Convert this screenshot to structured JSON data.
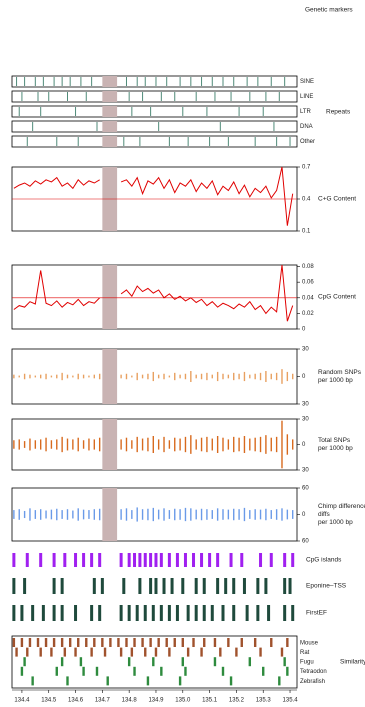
{
  "title": "Genetic markers",
  "chart_data": [
    {
      "type": "repeats",
      "title": "Repeats",
      "xlim": [
        134.363,
        135.426
      ],
      "highlight": [
        134.7,
        134.755
      ],
      "color": "#4f8a78",
      "rows": [
        {
          "name": "SINE",
          "x": [
            134.38,
            134.41,
            134.45,
            134.48,
            134.52,
            134.55,
            134.58,
            134.62,
            134.66,
            134.79,
            134.83,
            134.86,
            134.9,
            134.94,
            134.99,
            135.03,
            135.07,
            135.11,
            135.15,
            135.19,
            135.24,
            135.28,
            135.33,
            135.38
          ]
        },
        {
          "name": "LINE",
          "x": [
            134.4,
            134.46,
            134.5,
            134.57,
            134.64,
            134.8,
            134.85,
            134.92,
            134.97,
            135.05,
            135.12,
            135.18,
            135.25,
            135.31,
            135.36
          ]
        },
        {
          "name": "LTR",
          "x": [
            134.39,
            134.47,
            134.6,
            134.81,
            134.88,
            135.0,
            135.09,
            135.21,
            135.3
          ]
        },
        {
          "name": "DNA",
          "x": [
            134.44,
            134.68,
            134.91,
            135.14,
            135.34
          ]
        },
        {
          "name": "Other",
          "x": [
            134.42,
            134.53,
            134.61,
            134.78,
            134.84,
            134.95,
            135.02,
            135.1,
            135.17,
            135.27,
            135.35,
            135.4
          ]
        }
      ]
    },
    {
      "type": "line",
      "title": [
        "C+G Content"
      ],
      "xlim": [
        134.363,
        135.426
      ],
      "ylim": [
        0.1,
        0.7
      ],
      "yticks": [
        0.7,
        0.4,
        0.1
      ],
      "refline": 0.4,
      "highlight": [
        134.7,
        134.755
      ],
      "color": "#e00000",
      "x": [
        134.37,
        134.39,
        134.41,
        134.43,
        134.45,
        134.47,
        134.49,
        134.51,
        134.53,
        134.55,
        134.57,
        134.59,
        134.61,
        134.63,
        134.65,
        134.67,
        134.69,
        134.71,
        134.73,
        134.75,
        134.77,
        134.79,
        134.81,
        134.83,
        134.85,
        134.87,
        134.89,
        134.91,
        134.93,
        134.95,
        134.97,
        134.99,
        135.01,
        135.03,
        135.05,
        135.07,
        135.09,
        135.11,
        135.13,
        135.15,
        135.17,
        135.19,
        135.21,
        135.23,
        135.25,
        135.27,
        135.29,
        135.31,
        135.33,
        135.35,
        135.37,
        135.39,
        135.41
      ],
      "values": [
        0.5,
        0.53,
        0.55,
        0.52,
        0.57,
        0.54,
        0.58,
        0.56,
        0.6,
        0.52,
        0.55,
        0.5,
        0.58,
        0.53,
        0.57,
        0.55,
        0.58,
        null,
        null,
        null,
        0.56,
        0.58,
        0.52,
        0.6,
        0.45,
        0.57,
        0.54,
        0.6,
        0.5,
        0.58,
        0.46,
        0.55,
        0.52,
        0.58,
        0.47,
        0.55,
        0.5,
        0.57,
        0.44,
        0.52,
        0.48,
        0.56,
        0.45,
        0.53,
        0.42,
        0.5,
        0.46,
        0.52,
        0.41,
        0.48,
        0.7,
        0.15,
        0.45
      ]
    },
    {
      "type": "line",
      "title": [
        "CpG Content"
      ],
      "xlim": [
        134.363,
        135.426
      ],
      "ylim": [
        0,
        0.082
      ],
      "yticks": [
        0.08,
        0.06,
        0.04,
        0.02,
        0
      ],
      "refline": 0.04,
      "highlight": [
        134.7,
        134.755
      ],
      "color": "#e00000",
      "x": [
        134.37,
        134.39,
        134.41,
        134.43,
        134.45,
        134.47,
        134.49,
        134.51,
        134.53,
        134.55,
        134.57,
        134.59,
        134.61,
        134.63,
        134.65,
        134.67,
        134.69,
        134.71,
        134.73,
        134.75,
        134.77,
        134.79,
        134.81,
        134.83,
        134.85,
        134.87,
        134.89,
        134.91,
        134.93,
        134.95,
        134.97,
        134.99,
        135.01,
        135.03,
        135.05,
        135.07,
        135.09,
        135.11,
        135.13,
        135.15,
        135.17,
        135.19,
        135.21,
        135.23,
        135.25,
        135.27,
        135.29,
        135.31,
        135.33,
        135.35,
        135.37,
        135.39,
        135.41
      ],
      "values": [
        0.025,
        0.03,
        0.028,
        0.035,
        0.032,
        0.075,
        0.033,
        0.03,
        0.036,
        0.028,
        0.034,
        0.031,
        0.038,
        0.03,
        0.035,
        0.033,
        0.04,
        null,
        null,
        null,
        0.045,
        0.05,
        0.042,
        0.055,
        0.048,
        0.052,
        0.046,
        0.05,
        0.04,
        0.045,
        0.038,
        0.042,
        0.036,
        0.04,
        0.034,
        0.038,
        0.03,
        0.035,
        0.028,
        0.033,
        0.03,
        0.026,
        0.032,
        0.028,
        0.035,
        0.025,
        0.03,
        0.02,
        0.028,
        0.022,
        0.082,
        0.01,
        0.03
      ]
    },
    {
      "type": "snp",
      "title": [
        "Random SNPs",
        "per 1000 bp"
      ],
      "xlim": [
        134.363,
        135.426
      ],
      "ylim": [
        -30,
        30
      ],
      "yticks": [
        30,
        0,
        {
          "value": -30,
          "label": "30"
        }
      ],
      "highlight": [
        134.7,
        134.755
      ],
      "color": "#e8a060",
      "x": [
        134.37,
        134.39,
        134.41,
        134.43,
        134.45,
        134.47,
        134.49,
        134.51,
        134.53,
        134.55,
        134.57,
        134.59,
        134.61,
        134.63,
        134.65,
        134.67,
        134.69,
        134.71,
        134.73,
        134.75,
        134.77,
        134.79,
        134.81,
        134.83,
        134.85,
        134.87,
        134.89,
        134.91,
        134.93,
        134.95,
        134.97,
        134.99,
        135.01,
        135.03,
        135.05,
        135.07,
        135.09,
        135.11,
        135.13,
        135.15,
        135.17,
        135.19,
        135.21,
        135.23,
        135.25,
        135.27,
        135.29,
        135.31,
        135.33,
        135.35,
        135.37,
        135.39,
        135.41
      ],
      "values": [
        2,
        1,
        3,
        2,
        1,
        2,
        3,
        1,
        2,
        4,
        2,
        1,
        3,
        2,
        1,
        2,
        3,
        null,
        null,
        null,
        2,
        3,
        1,
        4,
        2,
        3,
        5,
        2,
        3,
        1,
        4,
        2,
        3,
        6,
        2,
        3,
        4,
        2,
        5,
        3,
        2,
        4,
        3,
        5,
        2,
        3,
        4,
        6,
        3,
        4,
        8,
        5,
        3
      ]
    },
    {
      "type": "snp",
      "title": [
        "Total SNPs",
        "per 1000 bp"
      ],
      "xlim": [
        134.363,
        135.426
      ],
      "ylim": [
        -30,
        30
      ],
      "yticks": [
        30,
        0,
        {
          "value": -30,
          "label": "30"
        }
      ],
      "highlight": [
        134.7,
        134.755
      ],
      "color": "#d86a1e",
      "x": [
        134.37,
        134.39,
        134.41,
        134.43,
        134.45,
        134.47,
        134.49,
        134.51,
        134.53,
        134.55,
        134.57,
        134.59,
        134.61,
        134.63,
        134.65,
        134.67,
        134.69,
        134.71,
        134.73,
        134.75,
        134.77,
        134.79,
        134.81,
        134.83,
        134.85,
        134.87,
        134.89,
        134.91,
        134.93,
        134.95,
        134.97,
        134.99,
        135.01,
        135.03,
        135.05,
        135.07,
        135.09,
        135.11,
        135.13,
        135.15,
        135.17,
        135.19,
        135.21,
        135.23,
        135.25,
        135.27,
        135.29,
        135.31,
        135.33,
        135.35,
        135.37,
        135.39,
        135.41
      ],
      "values": [
        5,
        6,
        4,
        7,
        5,
        6,
        8,
        5,
        6,
        9,
        7,
        6,
        8,
        5,
        7,
        6,
        8,
        null,
        null,
        null,
        6,
        8,
        5,
        9,
        7,
        8,
        10,
        6,
        9,
        5,
        8,
        7,
        9,
        11,
        6,
        8,
        9,
        7,
        10,
        8,
        6,
        9,
        8,
        10,
        7,
        8,
        9,
        11,
        8,
        9,
        28,
        12,
        6
      ]
    },
    {
      "type": "snp",
      "title": [
        "Chimp differences",
        "diffs",
        "per 1000 bp"
      ],
      "xlim": [
        134.363,
        135.426
      ],
      "ylim": [
        -60,
        60
      ],
      "yticks": [
        60,
        0,
        {
          "value": -60,
          "label": "60"
        }
      ],
      "highlight": [
        134.7,
        134.755
      ],
      "color": "#6a9ae8",
      "x": [
        134.37,
        134.39,
        134.41,
        134.43,
        134.45,
        134.47,
        134.49,
        134.51,
        134.53,
        134.55,
        134.57,
        134.59,
        134.61,
        134.63,
        134.65,
        134.67,
        134.69,
        134.71,
        134.73,
        134.75,
        134.77,
        134.79,
        134.81,
        134.83,
        134.85,
        134.87,
        134.89,
        134.91,
        134.93,
        134.95,
        134.97,
        134.99,
        135.01,
        135.03,
        135.05,
        135.07,
        135.09,
        135.11,
        135.13,
        135.15,
        135.17,
        135.19,
        135.21,
        135.23,
        135.25,
        135.27,
        135.29,
        135.31,
        135.33,
        135.35,
        135.37,
        135.39,
        135.41
      ],
      "values": [
        10,
        12,
        8,
        14,
        10,
        12,
        9,
        11,
        13,
        10,
        12,
        9,
        14,
        11,
        10,
        12,
        13,
        null,
        null,
        null,
        12,
        14,
        10,
        16,
        12,
        13,
        15,
        11,
        14,
        10,
        13,
        12,
        15,
        14,
        11,
        13,
        12,
        10,
        14,
        12,
        11,
        13,
        12,
        15,
        10,
        12,
        11,
        13,
        10,
        12,
        14,
        11,
        10
      ]
    },
    {
      "type": "features",
      "title": "CpG islands",
      "xlim": [
        134.363,
        135.426
      ],
      "color": "#a020f0",
      "x": [
        134.37,
        134.42,
        134.47,
        134.52,
        134.56,
        134.6,
        134.63,
        134.66,
        134.69,
        134.77,
        134.8,
        134.82,
        134.84,
        134.86,
        134.88,
        134.9,
        134.92,
        134.95,
        134.98,
        135.01,
        135.04,
        135.07,
        135.1,
        135.13,
        135.18,
        135.22,
        135.29,
        135.33,
        135.38,
        135.41
      ]
    },
    {
      "type": "features",
      "title": "Eponine–TSS",
      "xlim": [
        134.363,
        135.426
      ],
      "color": "#1f4a3c",
      "x": [
        134.37,
        134.41,
        134.52,
        134.55,
        134.67,
        134.7,
        134.78,
        134.84,
        134.88,
        134.9,
        134.93,
        134.96,
        135.0,
        135.05,
        135.08,
        135.13,
        135.16,
        135.19,
        135.23,
        135.28,
        135.31,
        135.38,
        135.4
      ]
    },
    {
      "type": "features",
      "title": "FirstEF",
      "xlim": [
        134.363,
        135.426
      ],
      "color": "#1f4a3c",
      "x": [
        134.37,
        134.4,
        134.44,
        134.48,
        134.52,
        134.55,
        134.6,
        134.66,
        134.69,
        134.77,
        134.8,
        134.83,
        134.86,
        134.89,
        134.92,
        134.95,
        134.98,
        135.02,
        135.05,
        135.08,
        135.11,
        135.15,
        135.19,
        135.24,
        135.28,
        135.32,
        135.38,
        135.41
      ]
    },
    {
      "type": "similarity",
      "title": "Similarity",
      "xlim": [
        134.363,
        135.426
      ],
      "xticks": [
        134.4,
        134.5,
        134.6,
        134.7,
        134.8,
        134.9,
        {
          "value": 135,
          "label": "135.0"
        },
        135.1,
        135.2,
        135.3,
        135.4
      ],
      "rows": [
        {
          "name": "Mouse",
          "color": "#a0522d",
          "x": [
            134.37,
            134.4,
            134.43,
            134.46,
            134.49,
            134.52,
            134.55,
            134.58,
            134.61,
            134.64,
            134.67,
            134.7,
            134.73,
            134.76,
            134.79,
            134.82,
            134.85,
            134.88,
            134.91,
            134.94,
            134.97,
            135.0,
            135.04,
            135.08,
            135.12,
            135.17,
            135.22,
            135.27,
            135.33,
            135.39
          ]
        },
        {
          "name": "Rat",
          "color": "#a0522d",
          "x": [
            134.38,
            134.42,
            134.47,
            134.51,
            134.56,
            134.6,
            134.66,
            134.71,
            134.77,
            134.81,
            134.86,
            134.9,
            134.95,
            135.02,
            135.07,
            135.14,
            135.2,
            135.29,
            135.37
          ]
        },
        {
          "name": "Fugu",
          "color": "#2e8b3e",
          "x": [
            134.41,
            134.55,
            134.62,
            134.8,
            134.89,
            135.0,
            135.12,
            135.25,
            135.38
          ]
        },
        {
          "name": "Tetraodon",
          "color": "#2e8b3e",
          "x": [
            134.4,
            134.53,
            134.63,
            134.68,
            134.82,
            134.92,
            135.01,
            135.15,
            135.3,
            135.39
          ]
        },
        {
          "name": "Zebrafish",
          "color": "#2e8b3e",
          "x": [
            134.44,
            134.57,
            134.72,
            134.87,
            134.99,
            135.18,
            135.36
          ]
        }
      ]
    }
  ]
}
